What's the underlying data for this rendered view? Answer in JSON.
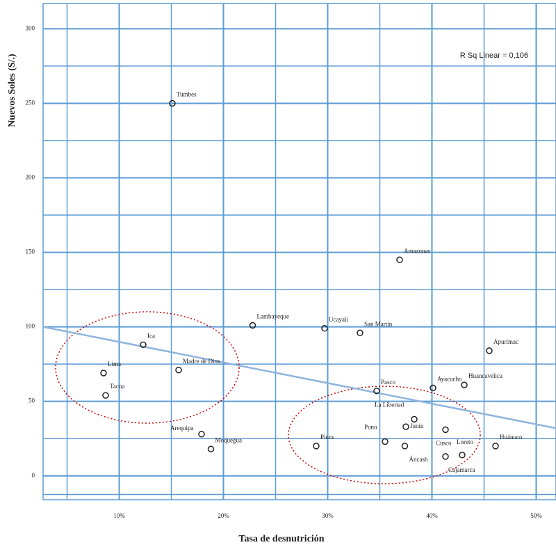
{
  "chart_data": {
    "type": "scatter",
    "y_label": "Nuevos Soles (S/.)",
    "x_label": "Tasa de desnutrición",
    "annotation": "R Sq Linear = 0,106",
    "xlim": [
      2.7,
      51.9
    ],
    "ylim": [
      -16,
      317
    ],
    "xticks": [
      {
        "value": 10,
        "label": "10%"
      },
      {
        "value": 20,
        "label": "20%"
      },
      {
        "value": 30,
        "label": "30%"
      },
      {
        "value": 40,
        "label": "40%"
      },
      {
        "value": 50,
        "label": "50%"
      }
    ],
    "xminor": [
      5,
      15,
      25,
      35,
      45
    ],
    "yticks": [
      0,
      50,
      100,
      150,
      200,
      250,
      300
    ],
    "yminor": [
      -12.5,
      25,
      75,
      125,
      175,
      225,
      275
    ],
    "grid": true,
    "color": "#222222",
    "fit_line": {
      "color": "#8fb4dc",
      "x": [
        2.7,
        51.9
      ],
      "y": [
        100,
        32
      ]
    },
    "labels": [
      "Tumbes",
      "Amazonas",
      "Lambayeque",
      "Ucayali",
      "San Martín",
      "Ica",
      "Apurímac",
      "Madre de Dios",
      "Lima",
      "Tacna",
      "Pasco",
      "Ayacucho",
      "Huancavelica",
      "La Libertad",
      "Arequipa",
      "Moquegua",
      "Piura",
      "Puno",
      "Junín",
      "Áncash",
      "Cusco",
      "Loreto",
      "Cajamarca",
      "Huánuco"
    ],
    "x": [
      15.1,
      36.9,
      22.8,
      29.7,
      33.1,
      12.3,
      45.5,
      15.7,
      8.5,
      8.7,
      34.7,
      40.1,
      43.1,
      38.3,
      17.9,
      18.8,
      28.9,
      35.5,
      37.5,
      37.4,
      41.3,
      42.9,
      41.3,
      46.1
    ],
    "y": [
      250,
      145,
      101,
      99,
      96,
      88,
      84,
      71,
      69,
      54,
      57,
      59,
      61,
      38,
      28,
      18,
      20,
      23,
      33,
      20,
      31,
      14,
      13,
      20
    ]
  }
}
